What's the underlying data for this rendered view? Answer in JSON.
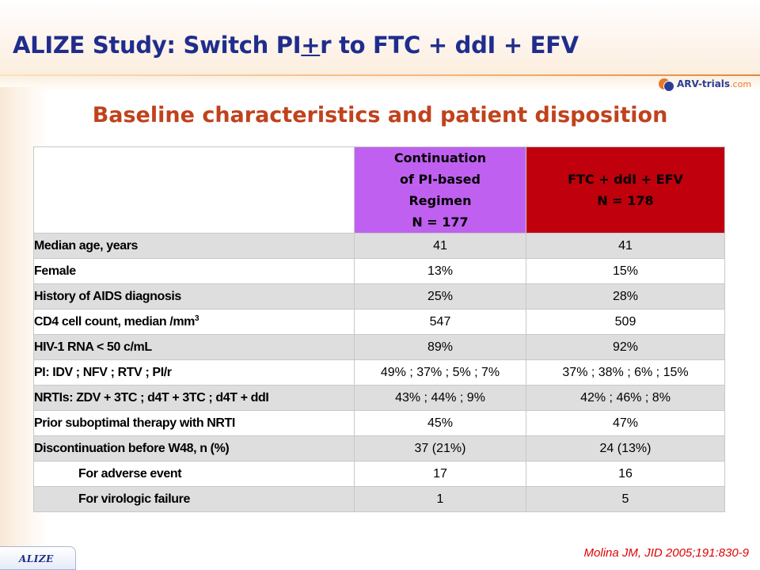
{
  "title": {
    "prefix": "ALIZE Study: Switch PI",
    "underlined": "+",
    "suffix": "r to FTC + ddI + EFV"
  },
  "logo": {
    "brand": "ARV-trials",
    "domain": ".com"
  },
  "subtitle": "Baseline characteristics and patient disposition",
  "table": {
    "columns": [
      {
        "lines": [
          "Continuation",
          "of PI-based",
          "Regimen",
          "N = 177"
        ],
        "color": "#c060f0"
      },
      {
        "lines": [
          "FTC + ddI + EFV",
          "N = 178"
        ],
        "color": "#c0000c"
      }
    ],
    "rows": [
      {
        "label": "Median age, years",
        "values": [
          "41",
          "41"
        ]
      },
      {
        "label": "Female",
        "values": [
          "13%",
          "15%"
        ]
      },
      {
        "label": "History of AIDS diagnosis",
        "values": [
          "25%",
          "28%"
        ]
      },
      {
        "label": "CD4 cell count, median /mm",
        "label_sup": "3",
        "values": [
          "547",
          "509"
        ]
      },
      {
        "label": "HIV-1 RNA < 50 c/mL",
        "values": [
          "89%",
          "92%"
        ]
      },
      {
        "label": "PI: IDV ; NFV ; RTV ; PI/r",
        "values": [
          "49% ; 37% ; 5% ; 7%",
          "37% ; 38% ; 6% ; 15%"
        ]
      },
      {
        "label": "NRTIs: ZDV + 3TC ; d4T + 3TC ; d4T + ddI",
        "values": [
          "43% ; 44% ; 9%",
          "42% ; 46% ; 8%"
        ]
      },
      {
        "label": "Prior suboptimal therapy with NRTI",
        "values": [
          "45%",
          "47%"
        ]
      },
      {
        "label": "Discontinuation before W48, n (%)",
        "values": [
          "37 (21%)",
          "24 (13%)"
        ]
      },
      {
        "label": "For adverse event",
        "values": [
          "17",
          "16"
        ]
      },
      {
        "label": "For virologic failure",
        "values": [
          "1",
          "5"
        ]
      }
    ]
  },
  "footer": {
    "tag": "ALIZE",
    "citation": "Molina JM, JID 2005;191:830-9"
  }
}
